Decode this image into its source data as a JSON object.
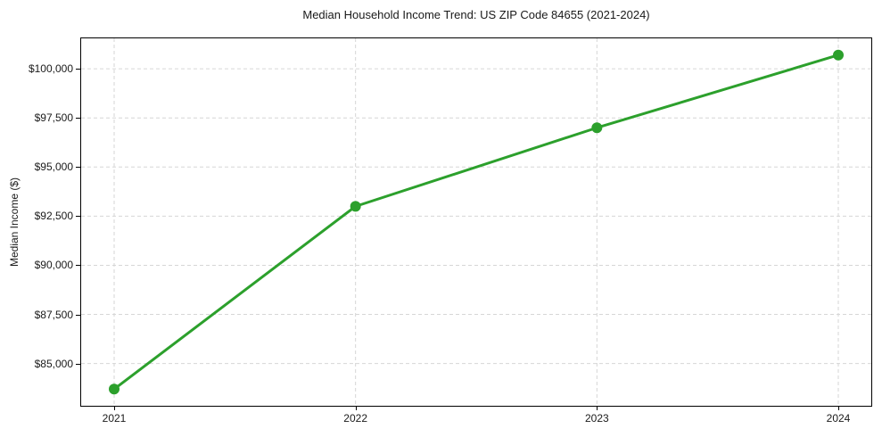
{
  "chart_data": {
    "type": "line",
    "title": "Median Household Income Trend: US ZIP Code 84655 (2021-2024)",
    "xlabel": "",
    "ylabel": "Median Income ($)",
    "categories": [
      "2021",
      "2022",
      "2023",
      "2024"
    ],
    "values": [
      83700,
      93000,
      97000,
      100700
    ],
    "yticks": [
      85000,
      87500,
      90000,
      92500,
      95000,
      97500,
      100000
    ],
    "ytick_labels": [
      "$85,000",
      "$87,500",
      "$90,000",
      "$92,500",
      "$95,000",
      "$97,500",
      "$100,000"
    ],
    "ylim": [
      82850,
      101550
    ],
    "grid": true,
    "legend": "none",
    "colors": {
      "line": "#2ca02c",
      "marker": "#2ca02c",
      "grid": "#d6d6d6",
      "axis": "#000000",
      "text": "#1a1a1a",
      "background": "#ffffff"
    }
  }
}
